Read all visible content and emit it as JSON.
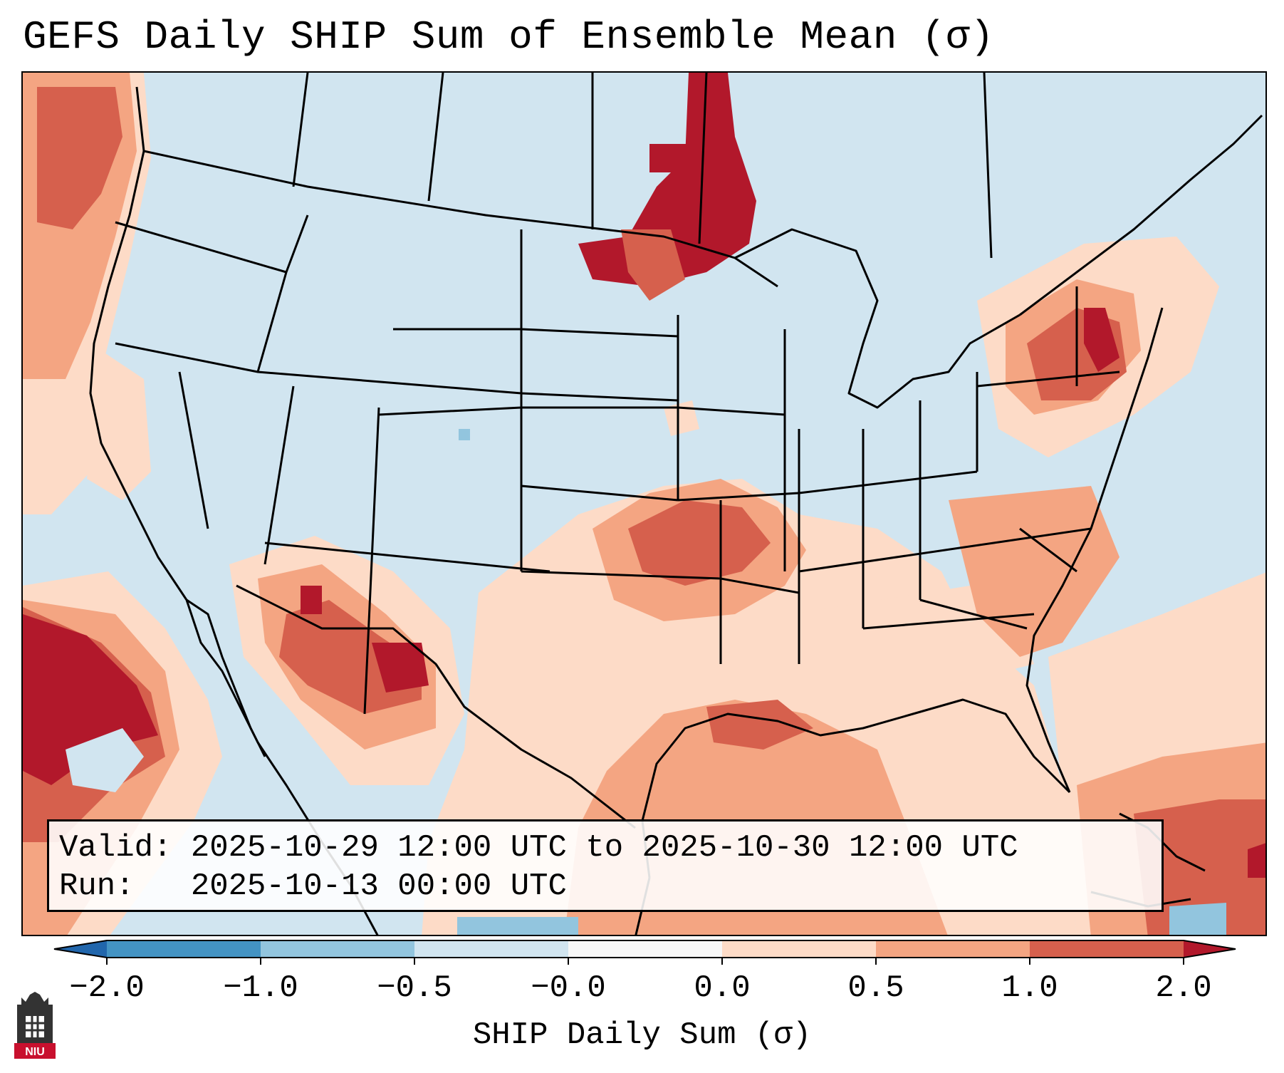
{
  "title": "GEFS Daily SHIP Sum of Ensemble Mean (σ)",
  "info": {
    "valid_label": "Valid:",
    "valid_value": "2025-10-29 12:00 UTC to 2025-10-30 12:00 UTC",
    "run_label": "Run:",
    "run_value": "2025-10-13 00:00 UTC"
  },
  "colorbar": {
    "label": "SHIP Daily Sum (σ)",
    "ticks": [
      "−2.0",
      "−1.0",
      "−0.5",
      "−0.0",
      "0.0",
      "0.5",
      "1.0",
      "2.0"
    ],
    "bin_colors": [
      "#4393c3",
      "#92c5de",
      "#d1e5f0",
      "#f7f7f7",
      "#fddbc7",
      "#f4a582",
      "#d6604d"
    ],
    "under_color": "#2166ac",
    "over_color": "#b2182b"
  },
  "map": {
    "background_class_color": "#d1e5f0",
    "field_colors": {
      "slight_positive": "#fddbc7",
      "moderate_positive": "#f4a582",
      "strong_positive": "#d6604d",
      "extreme_positive": "#b2182b",
      "slight_negative": "#92c5de"
    }
  },
  "logo": {
    "text": "NIU",
    "color": "#c8102e"
  }
}
